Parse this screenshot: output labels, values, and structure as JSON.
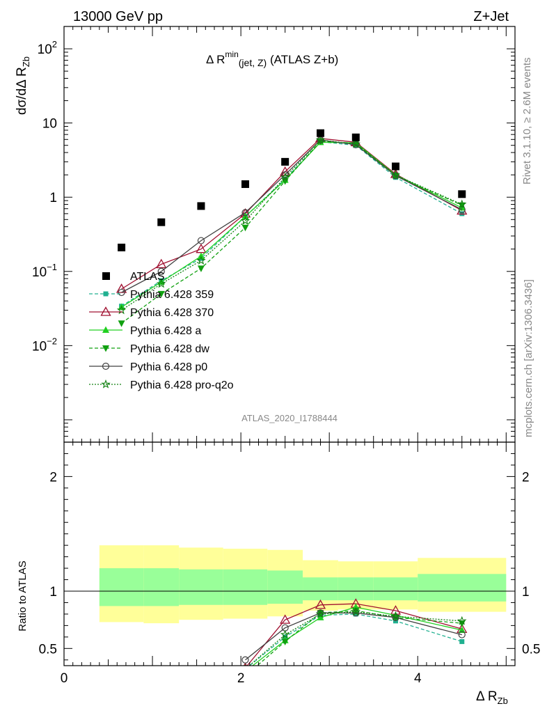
{
  "header": {
    "left": "13000 GeV pp",
    "right": "Z+Jet"
  },
  "side_labels": {
    "rivet": "Rivet 3.1.10, ≥ 2.6M events",
    "mcplots": "mcplots.cern.ch [arXiv:1306.3436]"
  },
  "chart_data": [
    {
      "type": "scatter",
      "title_main": "Δ R",
      "title_sup": "min",
      "title_sub": "(jet, Z)",
      "title_tail": " (ATLAS Z+b)",
      "ylabel": "dσ/dΔ R",
      "ylabel_sub": "Zb",
      "yscale": "log",
      "ylim": [
        0.0005,
        200
      ],
      "xlim": [
        0,
        5.1
      ],
      "analysis_id": "ATLAS_2020_I1788444",
      "y_ticks": [
        {
          "value": 100,
          "base": "10",
          "exp": "2"
        },
        {
          "value": 10,
          "base": "10",
          "exp": ""
        },
        {
          "value": 1,
          "base": "1",
          "exp": ""
        },
        {
          "value": 0.1,
          "base": "10",
          "exp": "−1"
        },
        {
          "value": 0.01,
          "base": "10",
          "exp": "−2"
        }
      ],
      "legend_position": "middle-left",
      "data": {
        "name": "ATLAS",
        "x": [
          0.65,
          1.1,
          1.55,
          2.05,
          2.5,
          2.9,
          3.3,
          3.75,
          4.5
        ],
        "y": [
          0.21,
          0.46,
          0.76,
          1.5,
          3.0,
          7.3,
          6.4,
          2.6,
          1.1
        ]
      },
      "series": [
        {
          "name": "Pythia 6.428 359",
          "color": "#20b090",
          "dash": "5,3",
          "marker": "square",
          "x": [
            0.65,
            1.1,
            1.55,
            2.05,
            2.5,
            2.9,
            3.3,
            3.75,
            4.5
          ],
          "y": [
            0.034,
            0.075,
            0.15,
            0.55,
            1.75,
            5.6,
            5.0,
            1.85,
            0.6
          ]
        },
        {
          "name": "Pythia 6.428 370",
          "color": "#a01030",
          "dash": "",
          "marker": "triangle-open",
          "x": [
            0.65,
            1.1,
            1.55,
            2.05,
            2.5,
            2.9,
            3.3,
            3.75,
            4.5
          ],
          "y": [
            0.058,
            0.125,
            0.2,
            0.6,
            2.2,
            6.2,
            5.5,
            2.05,
            0.66
          ]
        },
        {
          "name": "Pythia 6.428 a",
          "color": "#20d020",
          "dash": "",
          "marker": "triangle",
          "x": [
            0.65,
            1.1,
            1.55,
            2.05,
            2.5,
            2.9,
            3.3,
            3.75,
            4.5
          ],
          "y": [
            0.033,
            0.072,
            0.16,
            0.55,
            1.7,
            5.5,
            5.4,
            2.0,
            0.72
          ]
        },
        {
          "name": "Pythia 6.428 dw",
          "color": "#10a010",
          "dash": "5,3",
          "marker": "triangle-down",
          "x": [
            0.65,
            1.1,
            1.55,
            2.05,
            2.5,
            2.9,
            3.3,
            3.75,
            4.5
          ],
          "y": [
            0.02,
            0.05,
            0.11,
            0.39,
            1.65,
            5.7,
            5.3,
            1.95,
            0.78
          ]
        },
        {
          "name": "Pythia 6.428 p0",
          "color": "#404040",
          "dash": "",
          "marker": "circle-open",
          "x": [
            0.65,
            1.1,
            1.55,
            2.05,
            2.5,
            2.9,
            3.3,
            3.75,
            4.5
          ],
          "y": [
            0.052,
            0.1,
            0.26,
            0.62,
            2.0,
            5.9,
            5.1,
            1.95,
            0.68
          ]
        },
        {
          "name": "Pythia 6.428 pro-q2o",
          "color": "#108010",
          "dash": "2,2",
          "marker": "star",
          "x": [
            0.65,
            1.1,
            1.55,
            2.05,
            2.5,
            2.9,
            3.3,
            3.75,
            4.5
          ],
          "y": [
            0.03,
            0.068,
            0.14,
            0.48,
            1.85,
            5.9,
            5.2,
            1.98,
            0.8
          ]
        }
      ]
    },
    {
      "type": "scatter",
      "ylabel": "Ratio to ATLAS",
      "xlabel": "Δ R",
      "xlabel_sub": "Zb",
      "xlim": [
        0,
        5.1
      ],
      "ylim": [
        0.35,
        2.3
      ],
      "x_ticks": [
        0,
        2,
        4
      ],
      "y_ticks": [
        0.5,
        1,
        2
      ],
      "bands": [
        {
          "x0": 0.4,
          "x1": 0.9,
          "inner": [
            0.87,
            1.2
          ],
          "outer": [
            0.73,
            1.4
          ]
        },
        {
          "x0": 0.9,
          "x1": 1.3,
          "inner": [
            0.87,
            1.2
          ],
          "outer": [
            0.72,
            1.4
          ]
        },
        {
          "x0": 1.3,
          "x1": 1.8,
          "inner": [
            0.88,
            1.19
          ],
          "outer": [
            0.75,
            1.38
          ]
        },
        {
          "x0": 1.8,
          "x1": 2.3,
          "inner": [
            0.88,
            1.19
          ],
          "outer": [
            0.76,
            1.37
          ]
        },
        {
          "x0": 2.3,
          "x1": 2.7,
          "inner": [
            0.89,
            1.18
          ],
          "outer": [
            0.78,
            1.36
          ]
        },
        {
          "x0": 2.7,
          "x1": 3.1,
          "inner": [
            0.92,
            1.12
          ],
          "outer": [
            0.83,
            1.27
          ]
        },
        {
          "x0": 3.1,
          "x1": 3.5,
          "inner": [
            0.92,
            1.12
          ],
          "outer": [
            0.84,
            1.26
          ]
        },
        {
          "x0": 3.5,
          "x1": 4.0,
          "inner": [
            0.92,
            1.12
          ],
          "outer": [
            0.84,
            1.26
          ]
        },
        {
          "x0": 4.0,
          "x1": 5.0,
          "inner": [
            0.91,
            1.15
          ],
          "outer": [
            0.82,
            1.29
          ]
        }
      ],
      "band_colors": {
        "inner": "#99ff99",
        "outer": "#ffff99"
      },
      "series": [
        {
          "name": "Pythia 6.428 359",
          "x": [
            2.05,
            2.5,
            2.9,
            3.3,
            3.75,
            4.5
          ],
          "y": [
            0.32,
            0.6,
            0.79,
            0.8,
            0.74,
            0.56
          ]
        },
        {
          "name": "Pythia 6.428 370",
          "x": [
            2.05,
            2.5,
            2.9,
            3.3,
            3.75,
            4.5
          ],
          "y": [
            0.33,
            0.75,
            0.88,
            0.89,
            0.83,
            0.67
          ]
        },
        {
          "name": "Pythia 6.428 a",
          "x": [
            2.05,
            2.5,
            2.9,
            3.3,
            3.75,
            4.5
          ],
          "y": [
            0.3,
            0.57,
            0.77,
            0.86,
            0.79,
            0.66
          ]
        },
        {
          "name": "Pythia 6.428 dw",
          "x": [
            2.05,
            2.5,
            2.9,
            3.3,
            3.75,
            4.5
          ],
          "y": [
            0.26,
            0.56,
            0.81,
            0.83,
            0.77,
            0.72
          ]
        },
        {
          "name": "Pythia 6.428 p0",
          "x": [
            2.05,
            2.5,
            2.9,
            3.3,
            3.75,
            4.5
          ],
          "y": [
            0.4,
            0.68,
            0.81,
            0.81,
            0.77,
            0.62
          ]
        },
        {
          "name": "Pythia 6.428 pro-q2o",
          "x": [
            2.05,
            2.5,
            2.9,
            3.3,
            3.75,
            4.5
          ],
          "y": [
            0.32,
            0.62,
            0.8,
            0.82,
            0.78,
            0.74
          ]
        }
      ]
    }
  ]
}
